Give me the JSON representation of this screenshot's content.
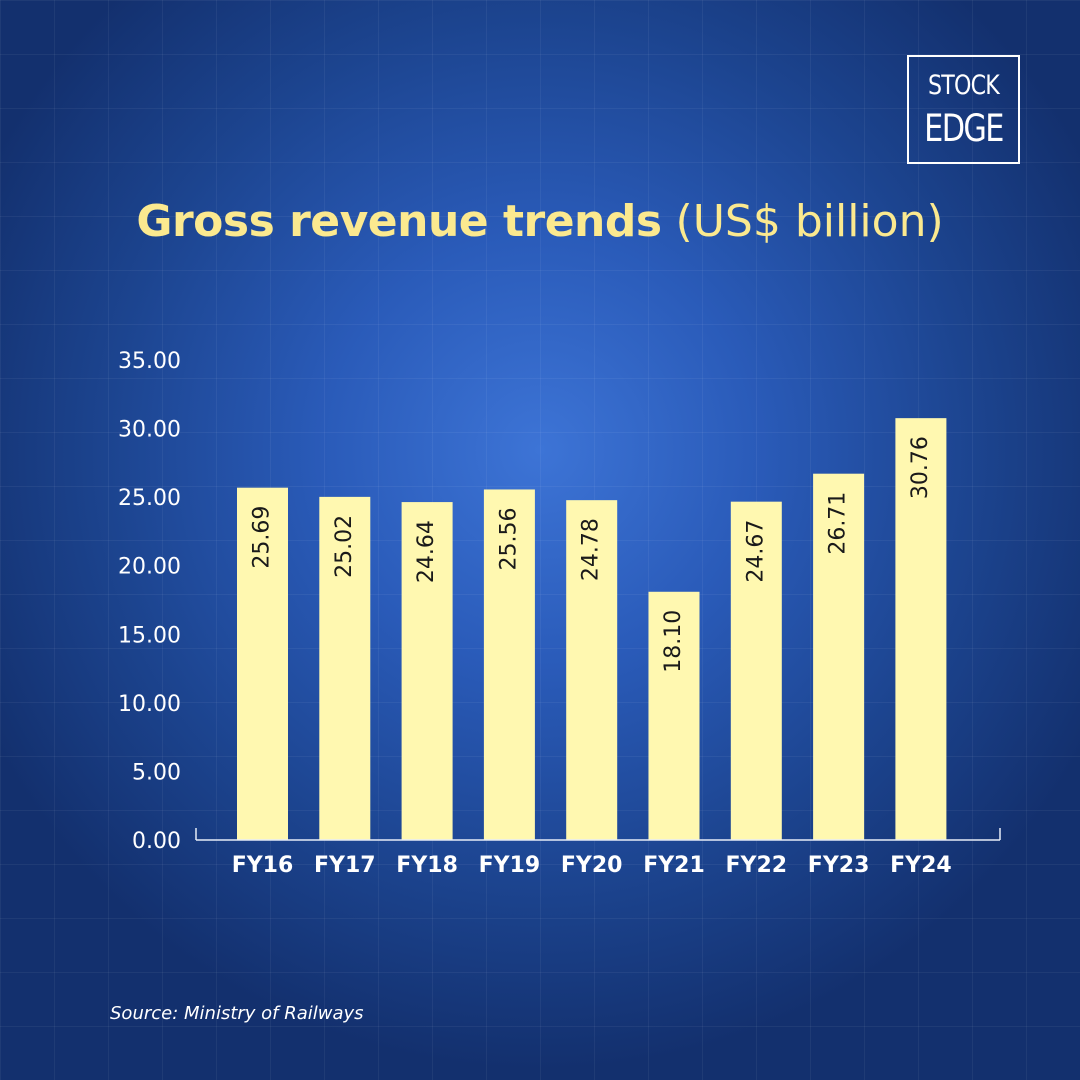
{
  "logo": {
    "line1": "STOCK",
    "line2": "EDGE"
  },
  "title": {
    "main": "Gross revenue trends",
    "unit": "(US$ billion)"
  },
  "source": "Source: Ministry of Railways",
  "colors": {
    "bar": "#fff8b0",
    "title": "#fbe98f",
    "axis": "#e6ecf7"
  },
  "chart_data": {
    "type": "bar",
    "categories": [
      "FY16",
      "FY17",
      "FY18",
      "FY19",
      "FY20",
      "FY21",
      "FY22",
      "FY23",
      "FY24"
    ],
    "values": [
      25.69,
      25.02,
      24.64,
      25.56,
      24.78,
      18.1,
      24.67,
      26.71,
      30.76
    ],
    "value_labels": [
      "25.69",
      "25.02",
      "24.64",
      "25.56",
      "24.78",
      "18.10",
      "24.67",
      "26.71",
      "30.76"
    ],
    "yticks": [
      "0.00",
      "5.00",
      "10.00",
      "15.00",
      "20.00",
      "25.00",
      "30.00",
      "35.00"
    ],
    "ylim": [
      0,
      35
    ],
    "xlabel": "",
    "ylabel": "",
    "grid": false,
    "legend": "none"
  }
}
